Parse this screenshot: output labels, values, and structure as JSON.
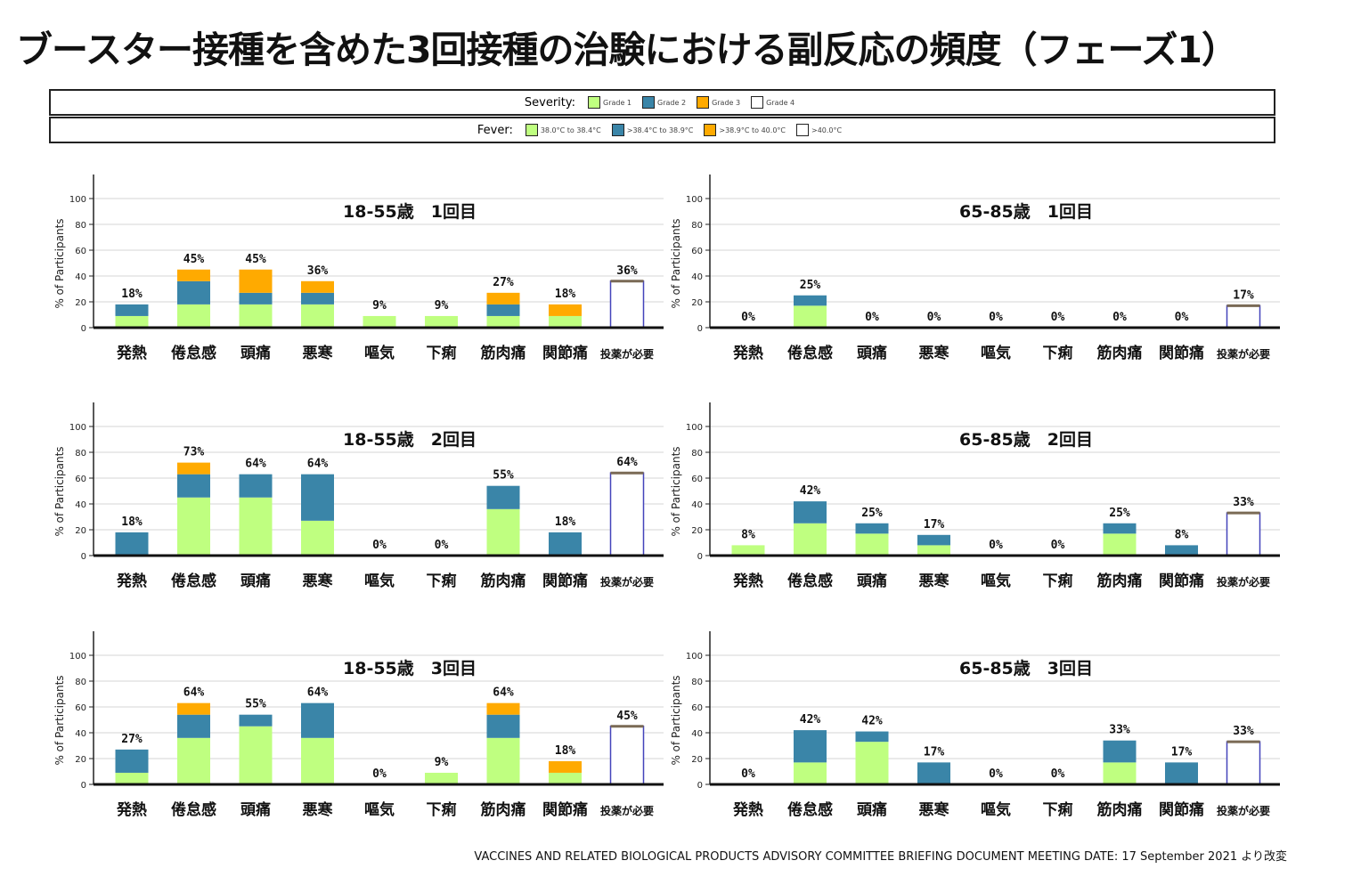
{
  "title": "ブースター接種を含めた3回接種の治験における副反応の頻度（フェーズ1）",
  "legend": {
    "severity_label": "Severity:",
    "severity": [
      {
        "label": "Grade 1",
        "color": "#bfff80"
      },
      {
        "label": "Grade 2",
        "color": "#3a85a8"
      },
      {
        "label": "Grade 3",
        "color": "#ffaa00"
      },
      {
        "label": "Grade 4",
        "color": "#ffffff"
      }
    ],
    "fever_label": "Fever:",
    "fever": [
      {
        "label": "38.0°C to 38.4°C",
        "color": "#bfff80"
      },
      {
        "label": ">38.4°C to 38.9°C",
        "color": "#3a85a8"
      },
      {
        "label": ">38.9°C to 40.0°C",
        "color": "#ffaa00"
      },
      {
        "label": ">40.0°C",
        "color": "#ffffff"
      }
    ]
  },
  "footer": "VACCINES AND RELATED BIOLOGICAL PRODUCTS ADVISORY COMMITTEE BRIEFING DOCUMENT MEETING DATE: 17 September 2021 より改変",
  "chart_data": [
    {
      "type": "bar",
      "stacked": true,
      "title": "18-55歳　1回目",
      "ylabel": "% of Participants",
      "ylim": [
        0,
        100
      ],
      "yticks": [
        0,
        20,
        40,
        60,
        80,
        100
      ],
      "grid": true,
      "categories": [
        "発熱",
        "倦怠感",
        "頭痛",
        "悪寒",
        "嘔気",
        "下痢",
        "筋肉痛",
        "関節痛",
        "投薬が必要"
      ],
      "series": [
        {
          "name": "Grade 1",
          "values": [
            9,
            18,
            18,
            18,
            9,
            9,
            9,
            9,
            0
          ]
        },
        {
          "name": "Grade 2",
          "values": [
            9,
            18,
            9,
            9,
            0,
            0,
            9,
            0,
            0
          ]
        },
        {
          "name": "Grade 3",
          "values": [
            0,
            9,
            18,
            9,
            0,
            0,
            9,
            9,
            0
          ]
        },
        {
          "name": "Grade 4",
          "values": [
            0,
            0,
            0,
            0,
            0,
            0,
            0,
            0,
            0
          ]
        }
      ],
      "medication": 36,
      "labels": [
        "18%",
        "45%",
        "45%",
        "36%",
        "9%",
        "9%",
        "27%",
        "18%",
        "36%"
      ]
    },
    {
      "type": "bar",
      "stacked": true,
      "title": "65-85歳　1回目",
      "ylabel": "% of Participants",
      "ylim": [
        0,
        100
      ],
      "yticks": [
        0,
        20,
        40,
        60,
        80,
        100
      ],
      "grid": true,
      "categories": [
        "発熱",
        "倦怠感",
        "頭痛",
        "悪寒",
        "嘔気",
        "下痢",
        "筋肉痛",
        "関節痛",
        "投薬が必要"
      ],
      "series": [
        {
          "name": "Grade 1",
          "values": [
            0,
            17,
            0,
            0,
            0,
            0,
            0,
            0,
            0
          ]
        },
        {
          "name": "Grade 2",
          "values": [
            0,
            8,
            0,
            0,
            0,
            0,
            0,
            0,
            0
          ]
        },
        {
          "name": "Grade 3",
          "values": [
            0,
            0,
            0,
            0,
            0,
            0,
            0,
            0,
            0
          ]
        },
        {
          "name": "Grade 4",
          "values": [
            0,
            0,
            0,
            0,
            0,
            0,
            0,
            0,
            0
          ]
        }
      ],
      "medication": 17,
      "labels": [
        "0%",
        "25%",
        "0%",
        "0%",
        "0%",
        "0%",
        "0%",
        "0%",
        "17%"
      ]
    },
    {
      "type": "bar",
      "stacked": true,
      "title": "18-55歳　2回目",
      "ylabel": "% of Participants",
      "ylim": [
        0,
        100
      ],
      "yticks": [
        0,
        20,
        40,
        60,
        80,
        100
      ],
      "grid": true,
      "categories": [
        "発熱",
        "倦怠感",
        "頭痛",
        "悪寒",
        "嘔気",
        "下痢",
        "筋肉痛",
        "関節痛",
        "投薬が必要"
      ],
      "series": [
        {
          "name": "Grade 1",
          "values": [
            0,
            45,
            45,
            27,
            0,
            0,
            36,
            0,
            0
          ]
        },
        {
          "name": "Grade 2",
          "values": [
            18,
            18,
            18,
            36,
            0,
            0,
            18,
            18,
            0
          ]
        },
        {
          "name": "Grade 3",
          "values": [
            0,
            9,
            0,
            0,
            0,
            0,
            0,
            0,
            0
          ]
        },
        {
          "name": "Grade 4",
          "values": [
            0,
            0,
            0,
            0,
            0,
            0,
            0,
            0,
            0
          ]
        }
      ],
      "medication": 64,
      "labels": [
        "18%",
        "73%",
        "64%",
        "64%",
        "0%",
        "0%",
        "55%",
        "18%",
        "64%"
      ]
    },
    {
      "type": "bar",
      "stacked": true,
      "title": "65-85歳　2回目",
      "ylabel": "% of Participants",
      "ylim": [
        0,
        100
      ],
      "yticks": [
        0,
        20,
        40,
        60,
        80,
        100
      ],
      "grid": true,
      "categories": [
        "発熱",
        "倦怠感",
        "頭痛",
        "悪寒",
        "嘔気",
        "下痢",
        "筋肉痛",
        "関節痛",
        "投薬が必要"
      ],
      "series": [
        {
          "name": "Grade 1",
          "values": [
            8,
            25,
            17,
            8,
            0,
            0,
            17,
            0,
            0
          ]
        },
        {
          "name": "Grade 2",
          "values": [
            0,
            17,
            8,
            8,
            0,
            0,
            8,
            8,
            0
          ]
        },
        {
          "name": "Grade 3",
          "values": [
            0,
            0,
            0,
            0,
            0,
            0,
            0,
            0,
            0
          ]
        },
        {
          "name": "Grade 4",
          "values": [
            0,
            0,
            0,
            0,
            0,
            0,
            0,
            0,
            0
          ]
        }
      ],
      "medication": 33,
      "labels": [
        "8%",
        "42%",
        "25%",
        "17%",
        "0%",
        "0%",
        "25%",
        "8%",
        "33%"
      ]
    },
    {
      "type": "bar",
      "stacked": true,
      "title": "18-55歳　3回目",
      "ylabel": "% of Participants",
      "ylim": [
        0,
        100
      ],
      "yticks": [
        0,
        20,
        40,
        60,
        80,
        100
      ],
      "grid": true,
      "categories": [
        "発熱",
        "倦怠感",
        "頭痛",
        "悪寒",
        "嘔気",
        "下痢",
        "筋肉痛",
        "関節痛",
        "投薬が必要"
      ],
      "series": [
        {
          "name": "Grade 1",
          "values": [
            9,
            36,
            45,
            36,
            0,
            9,
            36,
            9,
            0
          ]
        },
        {
          "name": "Grade 2",
          "values": [
            18,
            18,
            9,
            27,
            0,
            0,
            18,
            0,
            0
          ]
        },
        {
          "name": "Grade 3",
          "values": [
            0,
            9,
            0,
            0,
            0,
            0,
            9,
            9,
            0
          ]
        },
        {
          "name": "Grade 4",
          "values": [
            0,
            0,
            0,
            0,
            0,
            0,
            0,
            0,
            0
          ]
        }
      ],
      "medication": 45,
      "labels": [
        "27%",
        "64%",
        "55%",
        "64%",
        "0%",
        "9%",
        "64%",
        "18%",
        "45%"
      ]
    },
    {
      "type": "bar",
      "stacked": true,
      "title": "65-85歳　3回目",
      "ylabel": "% of Participants",
      "ylim": [
        0,
        100
      ],
      "yticks": [
        0,
        20,
        40,
        60,
        80,
        100
      ],
      "grid": true,
      "categories": [
        "発熱",
        "倦怠感",
        "頭痛",
        "悪寒",
        "嘔気",
        "下痢",
        "筋肉痛",
        "関節痛",
        "投薬が必要"
      ],
      "series": [
        {
          "name": "Grade 1",
          "values": [
            0,
            17,
            33,
            0,
            0,
            0,
            17,
            0,
            0
          ]
        },
        {
          "name": "Grade 2",
          "values": [
            0,
            25,
            8,
            17,
            0,
            0,
            17,
            17,
            0
          ]
        },
        {
          "name": "Grade 3",
          "values": [
            0,
            0,
            0,
            0,
            0,
            0,
            0,
            0,
            0
          ]
        },
        {
          "name": "Grade 4",
          "values": [
            0,
            0,
            0,
            0,
            0,
            0,
            0,
            0,
            0
          ]
        }
      ],
      "medication": 33,
      "labels": [
        "0%",
        "42%",
        "42%",
        "17%",
        "0%",
        "0%",
        "33%",
        "17%",
        "33%"
      ]
    }
  ]
}
